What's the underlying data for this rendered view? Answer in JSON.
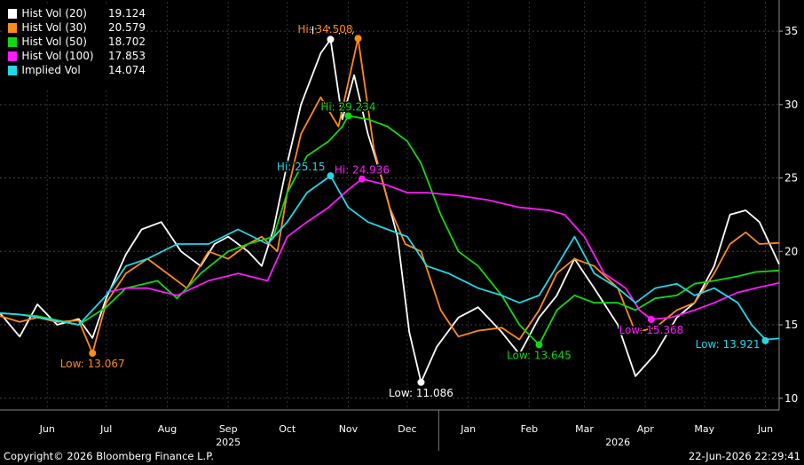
{
  "legend": [
    {
      "name": "Hist Vol (20)",
      "value": "19.124",
      "color": "#ffffff"
    },
    {
      "name": "Hist Vol (30)",
      "value": "20.579",
      "color": "#ff8c1a"
    },
    {
      "name": "Hist Vol (50)",
      "value": "18.702",
      "color": "#12d812"
    },
    {
      "name": "Hist Vol (100)",
      "value": "17.853",
      "color": "#ff1aff"
    },
    {
      "name": "Implied Vol",
      "value": "14.074",
      "color": "#22d8e8"
    }
  ],
  "footer": {
    "copyright": "Copyright© 2026 Bloomberg Finance L.P.",
    "timestamp": "22-Jun-2026 22:29:41"
  },
  "chart_data": {
    "type": "line",
    "x_start": "2025-05-22",
    "x_end": "2026-06-22",
    "ylim": [
      9.2,
      37
    ],
    "y_ticks": [
      10,
      15,
      20,
      25,
      30,
      35
    ],
    "grid": true,
    "month_labels": [
      {
        "label": "Jun",
        "date": "2025-06-15"
      },
      {
        "label": "Jul",
        "date": "2025-07-15"
      },
      {
        "label": "Aug",
        "date": "2025-08-15"
      },
      {
        "label": "Sep",
        "date": "2025-09-15"
      },
      {
        "label": "Oct",
        "date": "2025-10-15"
      },
      {
        "label": "Nov",
        "date": "2025-11-15"
      },
      {
        "label": "Dec",
        "date": "2025-12-15"
      },
      {
        "label": "Jan",
        "date": "2026-01-15"
      },
      {
        "label": "Feb",
        "date": "2026-02-15"
      },
      {
        "label": "Mar",
        "date": "2026-03-15"
      },
      {
        "label": "Apr",
        "date": "2026-04-15"
      },
      {
        "label": "May",
        "date": "2026-05-15"
      },
      {
        "label": "Jun",
        "date": "2026-06-15"
      }
    ],
    "year_labels": [
      {
        "label": "2025",
        "date": "2025-09-15"
      },
      {
        "label": "2026",
        "date": "2026-04-01"
      }
    ],
    "year_divider": "2025-12-31",
    "series": [
      {
        "name": "Hist Vol (20)",
        "color": "#ffffff",
        "points": [
          [
            "2025-05-22",
            15.8
          ],
          [
            "2025-06-01",
            14.2
          ],
          [
            "2025-06-10",
            16.4
          ],
          [
            "2025-06-20",
            15.0
          ],
          [
            "2025-07-01",
            15.4
          ],
          [
            "2025-07-08",
            14.1
          ],
          [
            "2025-07-15",
            16.8
          ],
          [
            "2025-07-25",
            19.8
          ],
          [
            "2025-08-02",
            21.5
          ],
          [
            "2025-08-12",
            22.0
          ],
          [
            "2025-08-22",
            20.0
          ],
          [
            "2025-09-01",
            19.0
          ],
          [
            "2025-09-08",
            20.5
          ],
          [
            "2025-09-15",
            21.0
          ],
          [
            "2025-09-25",
            20.0
          ],
          [
            "2025-10-02",
            19.0
          ],
          [
            "2025-10-08",
            21.5
          ],
          [
            "2025-10-15",
            26.0
          ],
          [
            "2025-10-22",
            30.0
          ],
          [
            "2025-11-01",
            33.5
          ],
          [
            "2025-11-06",
            34.44
          ],
          [
            "2025-11-12",
            29.0
          ],
          [
            "2025-11-18",
            32.0
          ],
          [
            "2025-11-25",
            28.0
          ],
          [
            "2025-12-02",
            25.0
          ],
          [
            "2025-12-10",
            21.0
          ],
          [
            "2025-12-16",
            14.5
          ],
          [
            "2025-12-22",
            11.086
          ],
          [
            "2025-12-30",
            13.5
          ],
          [
            "2026-01-10",
            15.5
          ],
          [
            "2026-01-20",
            16.2
          ],
          [
            "2026-02-01",
            14.5
          ],
          [
            "2026-02-10",
            13.0
          ],
          [
            "2026-02-20",
            15.5
          ],
          [
            "2026-03-01",
            17.0
          ],
          [
            "2026-03-10",
            19.5
          ],
          [
            "2026-03-20",
            17.5
          ],
          [
            "2026-04-01",
            15.0
          ],
          [
            "2026-04-10",
            11.5
          ],
          [
            "2026-04-20",
            13.0
          ],
          [
            "2026-05-01",
            15.5
          ],
          [
            "2026-05-10",
            16.5
          ],
          [
            "2026-05-20",
            19.0
          ],
          [
            "2026-05-28",
            22.5
          ],
          [
            "2026-06-05",
            22.8
          ],
          [
            "2026-06-12",
            22.0
          ],
          [
            "2026-06-22",
            19.124
          ]
        ]
      },
      {
        "name": "Hist Vol (30)",
        "color": "#ff8c1a",
        "points": [
          [
            "2025-05-22",
            15.6
          ],
          [
            "2025-06-01",
            15.2
          ],
          [
            "2025-06-10",
            15.5
          ],
          [
            "2025-06-20",
            15.2
          ],
          [
            "2025-07-01",
            15.3
          ],
          [
            "2025-07-08",
            13.067
          ],
          [
            "2025-07-15",
            16.5
          ],
          [
            "2025-07-25",
            18.5
          ],
          [
            "2025-08-05",
            19.5
          ],
          [
            "2025-08-15",
            18.5
          ],
          [
            "2025-08-25",
            17.5
          ],
          [
            "2025-09-05",
            20.0
          ],
          [
            "2025-09-15",
            19.5
          ],
          [
            "2025-09-25",
            20.5
          ],
          [
            "2025-10-02",
            21.0
          ],
          [
            "2025-10-10",
            20.0
          ],
          [
            "2025-10-15",
            24.0
          ],
          [
            "2025-10-22",
            28.0
          ],
          [
            "2025-11-01",
            30.5
          ],
          [
            "2025-11-10",
            28.5
          ],
          [
            "2025-11-20",
            34.508
          ],
          [
            "2025-11-28",
            27.0
          ],
          [
            "2025-12-06",
            23.0
          ],
          [
            "2025-12-14",
            20.5
          ],
          [
            "2025-12-22",
            20.0
          ],
          [
            "2026-01-01",
            16.0
          ],
          [
            "2026-01-10",
            14.2
          ],
          [
            "2026-01-20",
            14.6
          ],
          [
            "2026-02-01",
            14.8
          ],
          [
            "2026-02-10",
            14.0
          ],
          [
            "2026-02-20",
            16.0
          ],
          [
            "2026-03-01",
            18.5
          ],
          [
            "2026-03-10",
            19.5
          ],
          [
            "2026-03-20",
            19.0
          ],
          [
            "2026-04-01",
            17.5
          ],
          [
            "2026-04-10",
            14.5
          ],
          [
            "2026-04-20",
            14.8
          ],
          [
            "2026-05-01",
            16.0
          ],
          [
            "2026-05-10",
            16.5
          ],
          [
            "2026-05-20",
            18.5
          ],
          [
            "2026-05-28",
            20.5
          ],
          [
            "2026-06-05",
            21.3
          ],
          [
            "2026-06-12",
            20.5
          ],
          [
            "2026-06-22",
            20.579
          ]
        ]
      },
      {
        "name": "Hist Vol (50)",
        "color": "#12d812",
        "points": [
          [
            "2025-05-22",
            15.8
          ],
          [
            "2025-06-10",
            15.6
          ],
          [
            "2025-07-01",
            15.0
          ],
          [
            "2025-07-15",
            16.2
          ],
          [
            "2025-07-25",
            17.5
          ],
          [
            "2025-08-10",
            18.0
          ],
          [
            "2025-08-20",
            16.8
          ],
          [
            "2025-09-01",
            18.5
          ],
          [
            "2025-09-15",
            20.0
          ],
          [
            "2025-09-25",
            20.5
          ],
          [
            "2025-10-08",
            21.0
          ],
          [
            "2025-10-15",
            24.0
          ],
          [
            "2025-10-25",
            26.5
          ],
          [
            "2025-11-05",
            27.5
          ],
          [
            "2025-11-12",
            28.5
          ],
          [
            "2025-11-15",
            29.234
          ],
          [
            "2025-11-25",
            29.0
          ],
          [
            "2025-12-05",
            28.5
          ],
          [
            "2025-12-15",
            27.5
          ],
          [
            "2025-12-22",
            26.0
          ],
          [
            "2026-01-01",
            22.5
          ],
          [
            "2026-01-10",
            20.0
          ],
          [
            "2026-01-20",
            19.0
          ],
          [
            "2026-02-01",
            17.0
          ],
          [
            "2026-02-10",
            15.0
          ],
          [
            "2026-02-20",
            13.645
          ],
          [
            "2026-03-01",
            16.0
          ],
          [
            "2026-03-10",
            17.0
          ],
          [
            "2026-03-20",
            16.5
          ],
          [
            "2026-04-01",
            16.5
          ],
          [
            "2026-04-10",
            16.0
          ],
          [
            "2026-04-20",
            16.8
          ],
          [
            "2026-05-01",
            17.0
          ],
          [
            "2026-05-10",
            17.8
          ],
          [
            "2026-05-20",
            18.0
          ],
          [
            "2026-06-01",
            18.3
          ],
          [
            "2026-06-10",
            18.6
          ],
          [
            "2026-06-22",
            18.702
          ]
        ]
      },
      {
        "name": "Hist Vol (100)",
        "color": "#ff1aff",
        "points": [
          [
            "2025-07-15",
            17.2
          ],
          [
            "2025-07-25",
            17.5
          ],
          [
            "2025-08-05",
            17.5
          ],
          [
            "2025-08-20",
            17.0
          ],
          [
            "2025-09-05",
            18.0
          ],
          [
            "2025-09-20",
            18.5
          ],
          [
            "2025-10-05",
            18.0
          ],
          [
            "2025-10-15",
            21.0
          ],
          [
            "2025-10-25",
            22.0
          ],
          [
            "2025-11-05",
            23.0
          ],
          [
            "2025-11-15",
            24.2
          ],
          [
            "2025-11-22",
            24.936
          ],
          [
            "2025-12-05",
            24.5
          ],
          [
            "2025-12-15",
            24.0
          ],
          [
            "2025-12-25",
            24.0
          ],
          [
            "2026-01-10",
            23.8
          ],
          [
            "2026-01-25",
            23.5
          ],
          [
            "2026-02-10",
            23.0
          ],
          [
            "2026-02-25",
            22.8
          ],
          [
            "2026-03-05",
            22.5
          ],
          [
            "2026-03-15",
            21.0
          ],
          [
            "2026-03-25",
            18.5
          ],
          [
            "2026-04-05",
            17.5
          ],
          [
            "2026-04-12",
            16.0
          ],
          [
            "2026-04-18",
            15.368
          ],
          [
            "2026-04-28",
            15.5
          ],
          [
            "2026-05-10",
            16.0
          ],
          [
            "2026-05-20",
            16.5
          ],
          [
            "2026-06-01",
            17.2
          ],
          [
            "2026-06-10",
            17.5
          ],
          [
            "2026-06-22",
            17.853
          ]
        ]
      },
      {
        "name": "Implied Vol",
        "color": "#22d8e8",
        "points": [
          [
            "2025-05-22",
            15.8
          ],
          [
            "2025-06-01",
            15.7
          ],
          [
            "2025-06-15",
            15.4
          ],
          [
            "2025-07-01",
            15.0
          ],
          [
            "2025-07-15",
            17.0
          ],
          [
            "2025-07-25",
            19.0
          ],
          [
            "2025-08-05",
            19.5
          ],
          [
            "2025-08-20",
            20.5
          ],
          [
            "2025-09-05",
            20.5
          ],
          [
            "2025-09-20",
            21.5
          ],
          [
            "2025-10-05",
            20.5
          ],
          [
            "2025-10-15",
            22.0
          ],
          [
            "2025-10-25",
            24.0
          ],
          [
            "2025-11-06",
            25.15
          ],
          [
            "2025-11-15",
            23.0
          ],
          [
            "2025-11-25",
            22.0
          ],
          [
            "2025-12-05",
            21.5
          ],
          [
            "2025-12-15",
            21.0
          ],
          [
            "2025-12-25",
            19.0
          ],
          [
            "2026-01-05",
            18.5
          ],
          [
            "2026-01-20",
            17.5
          ],
          [
            "2026-02-01",
            17.0
          ],
          [
            "2026-02-10",
            16.5
          ],
          [
            "2026-02-20",
            17.0
          ],
          [
            "2026-03-01",
            19.0
          ],
          [
            "2026-03-10",
            21.0
          ],
          [
            "2026-03-20",
            18.5
          ],
          [
            "2026-04-01",
            17.5
          ],
          [
            "2026-04-10",
            16.5
          ],
          [
            "2026-04-20",
            17.5
          ],
          [
            "2026-05-01",
            17.8
          ],
          [
            "2026-05-10",
            17.0
          ],
          [
            "2026-05-20",
            17.5
          ],
          [
            "2026-06-01",
            16.5
          ],
          [
            "2026-06-08",
            15.0
          ],
          [
            "2026-06-15",
            14.0
          ],
          [
            "2026-06-22",
            14.074
          ]
        ]
      }
    ],
    "annotations": [
      {
        "series": 0,
        "text": "Hi: 34.44",
        "date": "2025-11-06",
        "y": 34.44,
        "pos": "above"
      },
      {
        "series": 1,
        "text": "Hi: 34.508",
        "date": "2025-11-20",
        "y": 34.508,
        "pos": "above-left"
      },
      {
        "series": 2,
        "text": "Hi: 29.234",
        "date": "2025-11-15",
        "y": 29.234,
        "pos": "above"
      },
      {
        "series": 3,
        "text": "Hi: 24.936",
        "date": "2025-11-22",
        "y": 24.936,
        "pos": "above"
      },
      {
        "series": 4,
        "text": "Hi: 25.15",
        "date": "2025-11-06",
        "y": 25.15,
        "pos": "above-left"
      },
      {
        "series": 0,
        "text": "Low: 11.086",
        "date": "2025-12-22",
        "y": 11.086,
        "pos": "below"
      },
      {
        "series": 1,
        "text": "Low: 13.067",
        "date": "2025-07-08",
        "y": 13.067,
        "pos": "below"
      },
      {
        "series": 2,
        "text": "Low: 13.645",
        "date": "2026-02-20",
        "y": 13.645,
        "pos": "below"
      },
      {
        "series": 3,
        "text": "Low: 15.368",
        "date": "2026-04-18",
        "y": 15.368,
        "pos": "below"
      },
      {
        "series": 4,
        "text": "Low: 13.921",
        "date": "2026-06-15",
        "y": 13.921,
        "pos": "below-left"
      }
    ]
  }
}
